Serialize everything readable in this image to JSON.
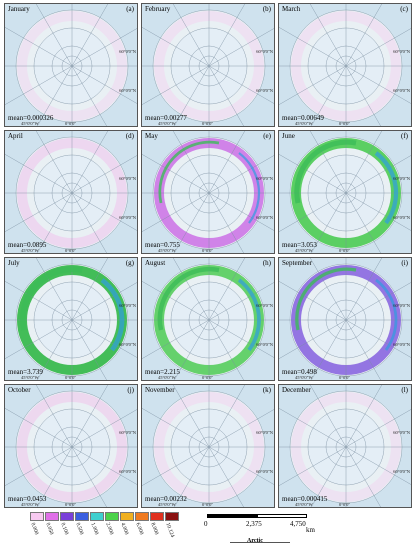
{
  "panels": [
    {
      "month": "January",
      "letter": "(a)",
      "mean": "mean=0.000326",
      "level": 0.0,
      "fill": "#f6c8ee"
    },
    {
      "month": "February",
      "letter": "(b)",
      "mean": "mean=0.00277",
      "level": 0.02,
      "fill": "#f6c8ee"
    },
    {
      "month": "March",
      "letter": "(c)",
      "mean": "mean=0.00649",
      "level": 0.04,
      "fill": "#f6c8ee"
    },
    {
      "month": "April",
      "letter": "(d)",
      "mean": "mean=0.0895",
      "level": 0.15,
      "fill": "#f2b6ea"
    },
    {
      "month": "May",
      "letter": "(e)",
      "mean": "mean=0.755",
      "level": 0.45,
      "fill": "#c040e0"
    },
    {
      "month": "June",
      "letter": "(f)",
      "mean": "mean=3.053",
      "level": 0.85,
      "fill": "#44c94a"
    },
    {
      "month": "July",
      "letter": "(g)",
      "mean": "mean=3.739",
      "level": 0.95,
      "fill": "#34b84a"
    },
    {
      "month": "August",
      "letter": "(h)",
      "mean": "mean=2.215",
      "level": 0.75,
      "fill": "#44c94a"
    },
    {
      "month": "September",
      "letter": "(i)",
      "mean": "mean=0.498",
      "level": 0.55,
      "fill": "#6a3bd9"
    },
    {
      "month": "October",
      "letter": "(j)",
      "mean": "mean=0.0453",
      "level": 0.1,
      "fill": "#f2b6ea"
    },
    {
      "month": "November",
      "letter": "(k)",
      "mean": "mean=0.00232",
      "level": 0.02,
      "fill": "#f6c8ee"
    },
    {
      "month": "December",
      "letter": "(l)",
      "mean": "mean=0.000415",
      "level": 0.0,
      "fill": "#f6c8ee"
    }
  ],
  "graticule_labels": {
    "lon_left": "45°0'0\"W",
    "lon_mid": "0°0'0\"",
    "lat_upper": "60°0'0\"N",
    "lat_lower": "60°0'0\"N"
  },
  "legend": {
    "colors": [
      "#f7c9f0",
      "#e070e8",
      "#7a3fd9",
      "#3b5fe0",
      "#3fcfcf",
      "#4cd24a",
      "#f0b020",
      "#f07a20",
      "#e0301e",
      "#8a1010"
    ],
    "ticks": [
      "0.000",
      "0.050",
      "0.100",
      "0.500",
      "1.000",
      "2.000",
      "4.000",
      "6.000",
      "8.000",
      "10.124"
    ]
  },
  "scale_bar": {
    "n0": "0",
    "n1": "2,375",
    "n2": "4,750",
    "unit": "km",
    "label": "Arctic"
  }
}
